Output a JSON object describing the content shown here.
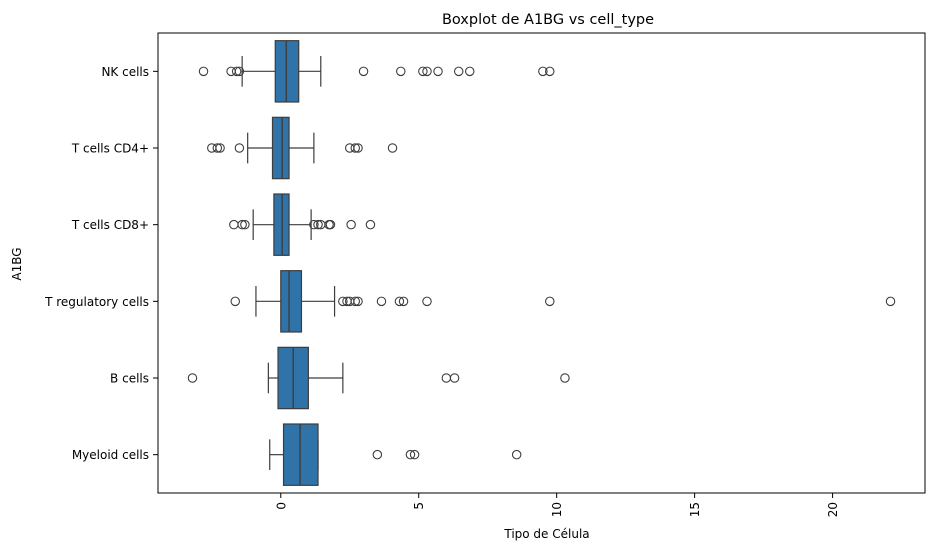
{
  "chart_data": {
    "type": "boxplot",
    "orientation": "horizontal",
    "title": "Boxplot de A1BG vs cell_type",
    "xlabel": "Tipo de Célula",
    "ylabel": "A1BG",
    "xlim": [
      -4.45,
      23.35
    ],
    "xticks": [
      0,
      5,
      10,
      15,
      20
    ],
    "xtick_labels": [
      "0",
      "5",
      "10",
      "15",
      "20"
    ],
    "xtick_rotation": 90,
    "grid": false,
    "box_color": "#2f73a9",
    "categories": [
      "NK cells",
      "T cells CD4+",
      "T cells CD8+",
      "T regulatory cells",
      "B cells",
      "Myeloid cells"
    ],
    "boxes": [
      {
        "category": "NK cells",
        "whisker_low": -1.4,
        "q1": -0.2,
        "median": 0.2,
        "q3": 0.65,
        "whisker_high": 1.45,
        "outliers": [
          -2.8,
          -1.8,
          -1.6,
          -1.5,
          3.0,
          4.35,
          5.15,
          5.3,
          5.7,
          6.45,
          6.85,
          9.5,
          9.75
        ]
      },
      {
        "category": "T cells CD4+",
        "whisker_low": -1.2,
        "q1": -0.3,
        "median": 0.05,
        "q3": 0.3,
        "whisker_high": 1.2,
        "outliers": [
          -2.5,
          -2.3,
          -2.2,
          -1.5,
          2.5,
          2.7,
          2.8,
          4.05
        ]
      },
      {
        "category": "T cells CD8+",
        "whisker_low": -1.0,
        "q1": -0.25,
        "median": 0.05,
        "q3": 0.3,
        "whisker_high": 1.1,
        "outliers": [
          -1.7,
          -1.4,
          -1.3,
          1.2,
          1.35,
          1.45,
          1.75,
          1.8,
          2.55,
          3.25
        ]
      },
      {
        "category": "T regulatory cells",
        "whisker_low": -0.9,
        "q1": 0.0,
        "median": 0.3,
        "q3": 0.75,
        "whisker_high": 1.95,
        "outliers": [
          -1.65,
          2.25,
          2.4,
          2.5,
          2.7,
          2.8,
          3.65,
          4.3,
          4.45,
          5.3,
          9.75,
          22.1
        ]
      },
      {
        "category": "B cells",
        "whisker_low": -0.45,
        "q1": -0.1,
        "median": 0.45,
        "q3": 1.0,
        "whisker_high": 2.25,
        "outliers": [
          -3.2,
          6.0,
          6.3,
          10.3
        ]
      },
      {
        "category": "Myeloid cells",
        "whisker_low": -0.4,
        "q1": 0.1,
        "median": 0.7,
        "q3": 1.35,
        "whisker_high": 1.35,
        "outliers": [
          3.5,
          4.7,
          4.85,
          8.55
        ]
      }
    ]
  }
}
